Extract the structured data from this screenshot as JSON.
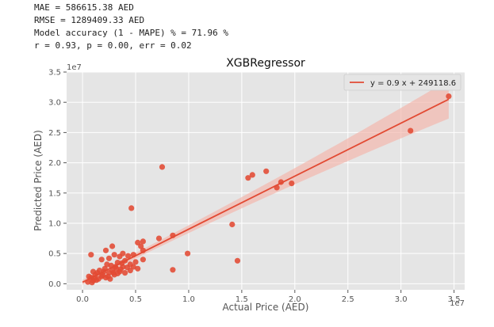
{
  "stats": {
    "mae": "MAE = 586615.38 AED",
    "rmse": "RMSE = 1289409.33 AED",
    "accuracy": "Model accuracy (1 - MAPE) % = 71.96 %",
    "corr": "r = 0.93, p = 0.00, err = 0.02"
  },
  "chart_data": {
    "type": "scatter",
    "title": "XGBRegressor",
    "xlabel": "Actual Price (AED)",
    "ylabel": "Predicted Price (AED)",
    "x_offset_label": "1e7",
    "y_offset_label": "1e7",
    "xlim": [
      -0.15,
      3.6
    ],
    "ylim": [
      -0.1,
      3.5
    ],
    "x_ticks": [
      0.0,
      0.5,
      1.0,
      1.5,
      2.0,
      2.5,
      3.0,
      3.5
    ],
    "x_tick_labels": [
      "0.0",
      "0.5",
      "1.0",
      "1.5",
      "2.0",
      "2.5",
      "3.0",
      "3.5"
    ],
    "y_ticks": [
      0.0,
      0.5,
      1.0,
      1.5,
      2.0,
      2.5,
      3.0,
      3.5
    ],
    "y_tick_labels": [
      "0.0",
      "0.5",
      "1.0",
      "1.5",
      "2.0",
      "2.5",
      "3.0",
      "3.5"
    ],
    "grid": true,
    "legend_position": "top-right",
    "colors": {
      "points": "#e24a33",
      "line": "#e24a33",
      "band": "#f4b8ae",
      "background": "#e5e5e5"
    },
    "regression": {
      "label": "y = 0.9 x + 249118.6",
      "x_range": [
        0.0,
        3.45
      ],
      "y_start": 0.025,
      "y_end": 3.05,
      "band_halfwidth_start": 0.04,
      "band_halfwidth_end": 0.32
    },
    "points": [
      [
        0.05,
        0.03
      ],
      [
        0.08,
        0.1
      ],
      [
        0.1,
        0.05
      ],
      [
        0.12,
        0.15
      ],
      [
        0.15,
        0.08
      ],
      [
        0.18,
        0.12
      ],
      [
        0.2,
        0.2
      ],
      [
        0.22,
        0.1
      ],
      [
        0.25,
        0.18
      ],
      [
        0.28,
        0.22
      ],
      [
        0.3,
        0.15
      ],
      [
        0.32,
        0.25
      ],
      [
        0.35,
        0.2
      ],
      [
        0.38,
        0.28
      ],
      [
        0.4,
        0.18
      ],
      [
        0.1,
        0.2
      ],
      [
        0.13,
        0.06
      ],
      [
        0.16,
        0.22
      ],
      [
        0.19,
        0.14
      ],
      [
        0.24,
        0.12
      ],
      [
        0.27,
        0.3
      ],
      [
        0.33,
        0.17
      ],
      [
        0.36,
        0.24
      ],
      [
        0.42,
        0.27
      ],
      [
        0.45,
        0.22
      ],
      [
        0.06,
        0.12
      ],
      [
        0.09,
        0.02
      ],
      [
        0.11,
        0.09
      ],
      [
        0.14,
        0.18
      ],
      [
        0.21,
        0.25
      ],
      [
        0.23,
        0.32
      ],
      [
        0.26,
        0.08
      ],
      [
        0.29,
        0.18
      ],
      [
        0.31,
        0.28
      ],
      [
        0.37,
        0.34
      ],
      [
        0.08,
        0.48
      ],
      [
        0.22,
        0.55
      ],
      [
        0.28,
        0.62
      ],
      [
        0.18,
        0.4
      ],
      [
        0.25,
        0.42
      ],
      [
        0.3,
        0.48
      ],
      [
        0.33,
        0.35
      ],
      [
        0.4,
        0.38
      ],
      [
        0.35,
        0.45
      ],
      [
        0.45,
        0.32
      ],
      [
        0.48,
        0.28
      ],
      [
        0.5,
        0.36
      ],
      [
        0.52,
        0.25
      ],
      [
        0.43,
        0.46
      ],
      [
        0.38,
        0.5
      ],
      [
        0.46,
        1.25
      ],
      [
        0.52,
        0.68
      ],
      [
        0.57,
        0.7
      ],
      [
        0.55,
        0.62
      ],
      [
        0.57,
        0.55
      ],
      [
        0.57,
        0.4
      ],
      [
        0.48,
        0.48
      ],
      [
        0.72,
        0.75
      ],
      [
        0.75,
        1.93
      ],
      [
        0.85,
        0.8
      ],
      [
        0.85,
        0.23
      ],
      [
        0.99,
        0.5
      ],
      [
        1.41,
        0.98
      ],
      [
        1.46,
        0.38
      ],
      [
        1.56,
        1.75
      ],
      [
        1.6,
        1.8
      ],
      [
        1.73,
        1.86
      ],
      [
        1.83,
        1.59
      ],
      [
        1.87,
        1.68
      ],
      [
        1.97,
        1.66
      ],
      [
        3.09,
        2.53
      ],
      [
        3.45,
        3.1
      ]
    ]
  }
}
